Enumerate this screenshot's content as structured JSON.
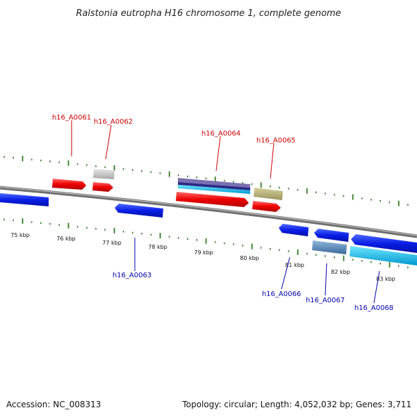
{
  "title": "Ralstonia eutropha H16 chromosome 1, complete genome",
  "footer": {
    "accession": "Accession: NC_008313",
    "summary": "Topology: circular; Length: 4,052,032 bp; Genes: 3,711"
  },
  "colors": {
    "forward_label": "#cc0000",
    "reverse_label": "#0000aa",
    "tick": "#2e7d1f",
    "backbone": "#7a7a7a"
  },
  "scale_labels": [
    "75 kbp",
    "76 kbp",
    "77 kbp",
    "78 kbp",
    "79 kbp",
    "80 kbp",
    "81 kbp",
    "82 kbp",
    "83 kbp"
  ],
  "forward_gene_labels": [
    "h16_A0061",
    "h16_A0062",
    "h16_A0064",
    "h16_A0065"
  ],
  "reverse_gene_labels": [
    "h16_A0063",
    "h16_A0066",
    "h16_A0067",
    "h16_A0068"
  ]
}
